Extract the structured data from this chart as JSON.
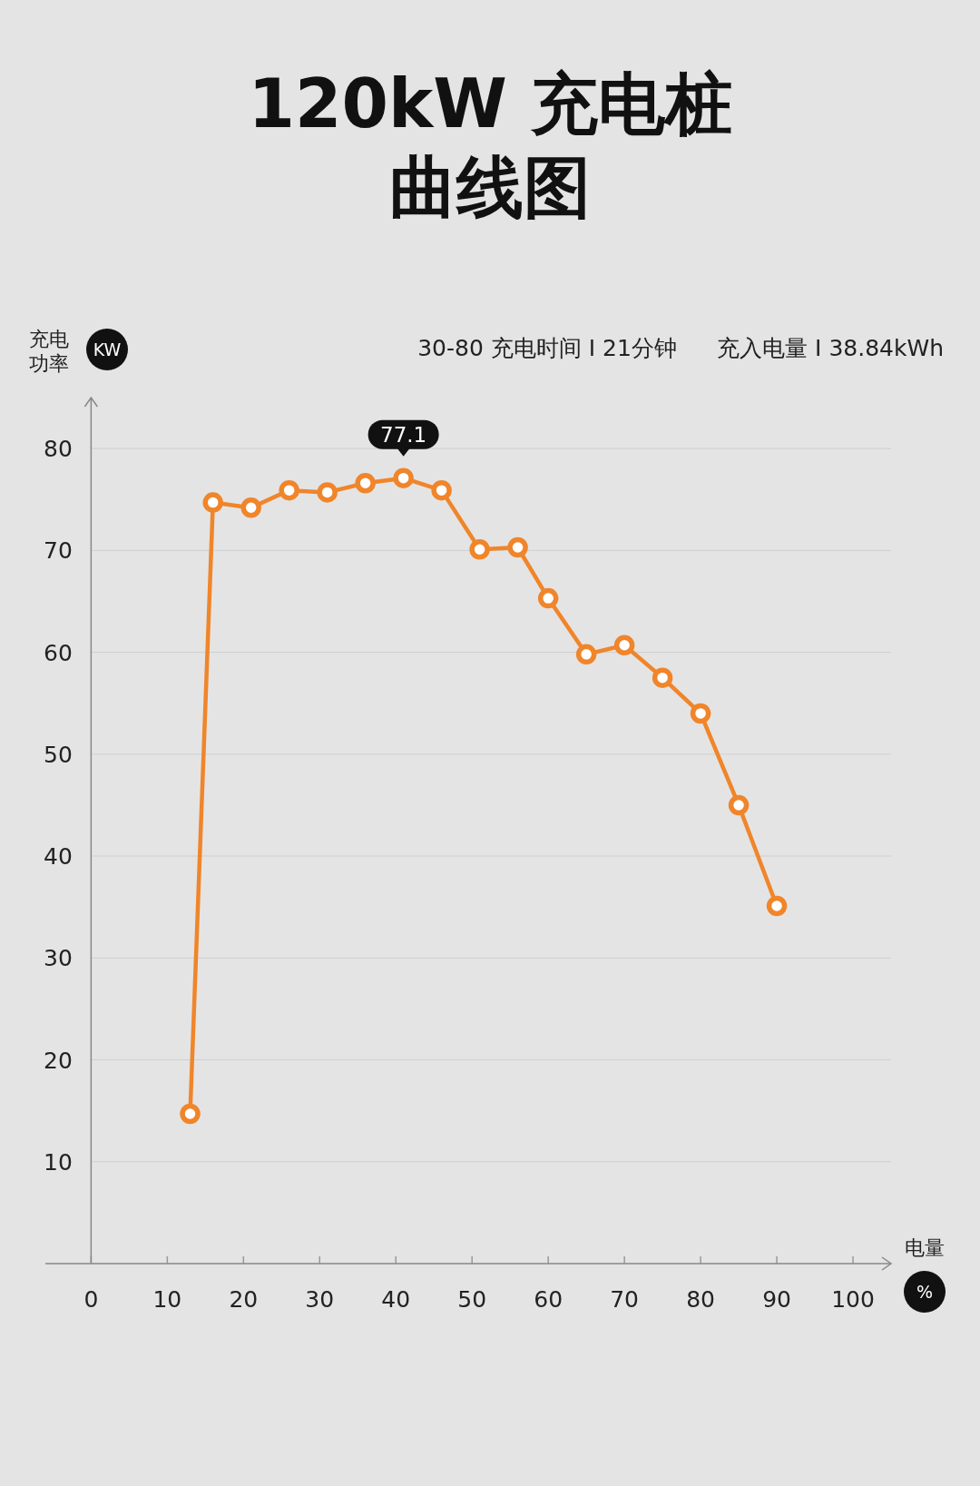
{
  "chart_data": {
    "type": "line",
    "title": "120kW 充电桩曲线图",
    "xlabel": "电量",
    "ylabel": "充电功率",
    "annotations": [
      "30-80 充电时间 I 21分钟",
      "充入电量 I 38.84kWh",
      "KW",
      "%",
      {
        "text": "77.1",
        "x": 41,
        "y": 77.1
      }
    ],
    "x": [
      13,
      16,
      21,
      26,
      31,
      36,
      41,
      46,
      51,
      56,
      60,
      65,
      70,
      75,
      80,
      85,
      90
    ],
    "series": [
      {
        "color": "#f0852a",
        "values": [
          14.7,
          74.7,
          74.2,
          75.9,
          75.7,
          76.6,
          77.1,
          75.9,
          70.1,
          70.3,
          65.3,
          59.8,
          60.7,
          57.5,
          54.0,
          45.0,
          35.1
        ]
      }
    ],
    "xlim": [
      -6,
      105
    ],
    "xticks": [
      0,
      10,
      20,
      30,
      40,
      50,
      60,
      70,
      80,
      90,
      100
    ],
    "ylim": [
      0,
      85
    ],
    "yticks": [
      10,
      20,
      30,
      40,
      50,
      60,
      70,
      80
    ],
    "grid": "y",
    "marker": "circle",
    "line_style": "solid"
  }
}
